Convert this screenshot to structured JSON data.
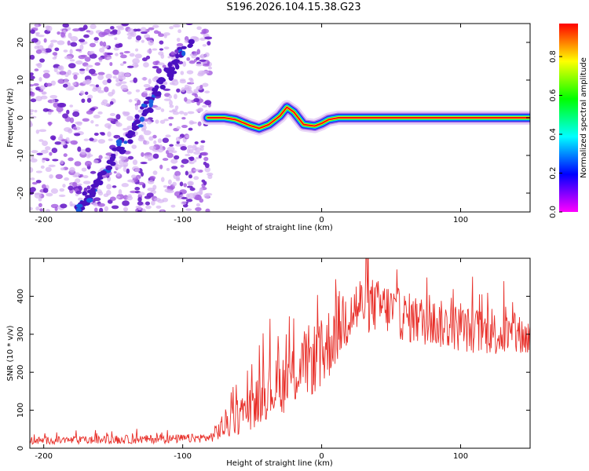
{
  "chart_data": [
    {
      "type": "heatmap",
      "title": "S196.2026.104.15.38.G23",
      "xlabel": "Height of straight line (km)",
      "ylabel": "Frequency (Hz)",
      "xlim": [
        -210,
        150
      ],
      "ylim": [
        -25,
        25
      ],
      "xticks": [
        -200,
        -100,
        0,
        100
      ],
      "yticks": [
        -20,
        -10,
        0,
        10,
        20
      ],
      "colorbar": {
        "label": "Normalized spectral amplitude",
        "range": [
          0,
          0.97
        ],
        "ticks": [
          0.0,
          0.2,
          0.4,
          0.6,
          0.8
        ],
        "colors": [
          "#ff00ff",
          "#0000ff",
          "#00ffff",
          "#00ff00",
          "#ffff00",
          "#ff0000"
        ]
      },
      "noise_region_x": [
        -210,
        -80
      ],
      "diagonal_track": {
        "x": [
          -175,
          -95
        ],
        "y": [
          -25,
          20
        ]
      },
      "frequency_trace": {
        "x": [
          -82,
          -70,
          -62,
          -52,
          -45,
          -38,
          -30,
          -25,
          -20,
          -13,
          -5,
          0,
          5,
          12,
          30,
          60,
          100,
          150
        ],
        "y": [
          0,
          0,
          -0.5,
          -2,
          -2.8,
          -1.8,
          0.5,
          2.8,
          1.5,
          -1.8,
          -2.2,
          -1.5,
          -0.5,
          0,
          0,
          0,
          0,
          0
        ]
      }
    },
    {
      "type": "line",
      "xlabel": "Height of straight line (km)",
      "ylabel": "SNR (10 * v/v)",
      "xlim": [
        -210,
        150
      ],
      "ylim": [
        0,
        500
      ],
      "xticks": [
        -200,
        -100,
        0,
        100
      ],
      "yticks": [
        0,
        100,
        200,
        300,
        400
      ],
      "color": "#e8302a",
      "envelope": {
        "x": [
          -210,
          -150,
          -100,
          -80,
          -75,
          -70,
          -60,
          -50,
          -40,
          -30,
          -20,
          -10,
          0,
          10,
          20,
          30,
          40,
          50,
          60,
          80,
          100,
          120,
          150
        ],
        "y": [
          20,
          22,
          25,
          28,
          45,
          60,
          85,
          110,
          145,
          165,
          195,
          230,
          240,
          310,
          360,
          380,
          375,
          365,
          345,
          330,
          315,
          305,
          290
        ]
      },
      "spread": {
        "x": [
          -210,
          -80,
          -70,
          -30,
          0,
          20,
          40,
          150
        ],
        "y": [
          10,
          12,
          40,
          80,
          100,
          90,
          70,
          55
        ]
      }
    }
  ]
}
